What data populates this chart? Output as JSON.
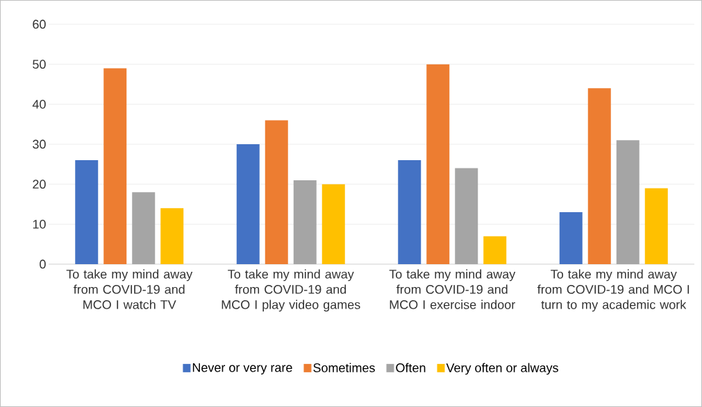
{
  "chart_data": {
    "type": "bar",
    "categories": [
      "To take my mind away from COVID-19 and MCO I watch TV",
      "To take my mind away from COVID-19 and MCO I play video games",
      "To take my mind away from COVID-19 and MCO I exercise indoor",
      "To take my mind away from COVID-19 and MCO I turn to my academic work"
    ],
    "series": [
      {
        "name": "Never or very rare",
        "color": "#4472c4",
        "values": [
          26,
          30,
          26,
          13
        ]
      },
      {
        "name": "Sometimes",
        "color": "#ed7d31",
        "values": [
          49,
          36,
          50,
          44
        ]
      },
      {
        "name": "Often",
        "color": "#a5a5a5",
        "values": [
          18,
          21,
          24,
          31
        ]
      },
      {
        "name": "Very often or always",
        "color": "#ffc000",
        "values": [
          14,
          20,
          7,
          19
        ]
      }
    ],
    "ylim": [
      0,
      60
    ],
    "yticks": [
      0,
      10,
      20,
      30,
      40,
      50,
      60
    ],
    "grid": "y",
    "legend": "bottom"
  }
}
